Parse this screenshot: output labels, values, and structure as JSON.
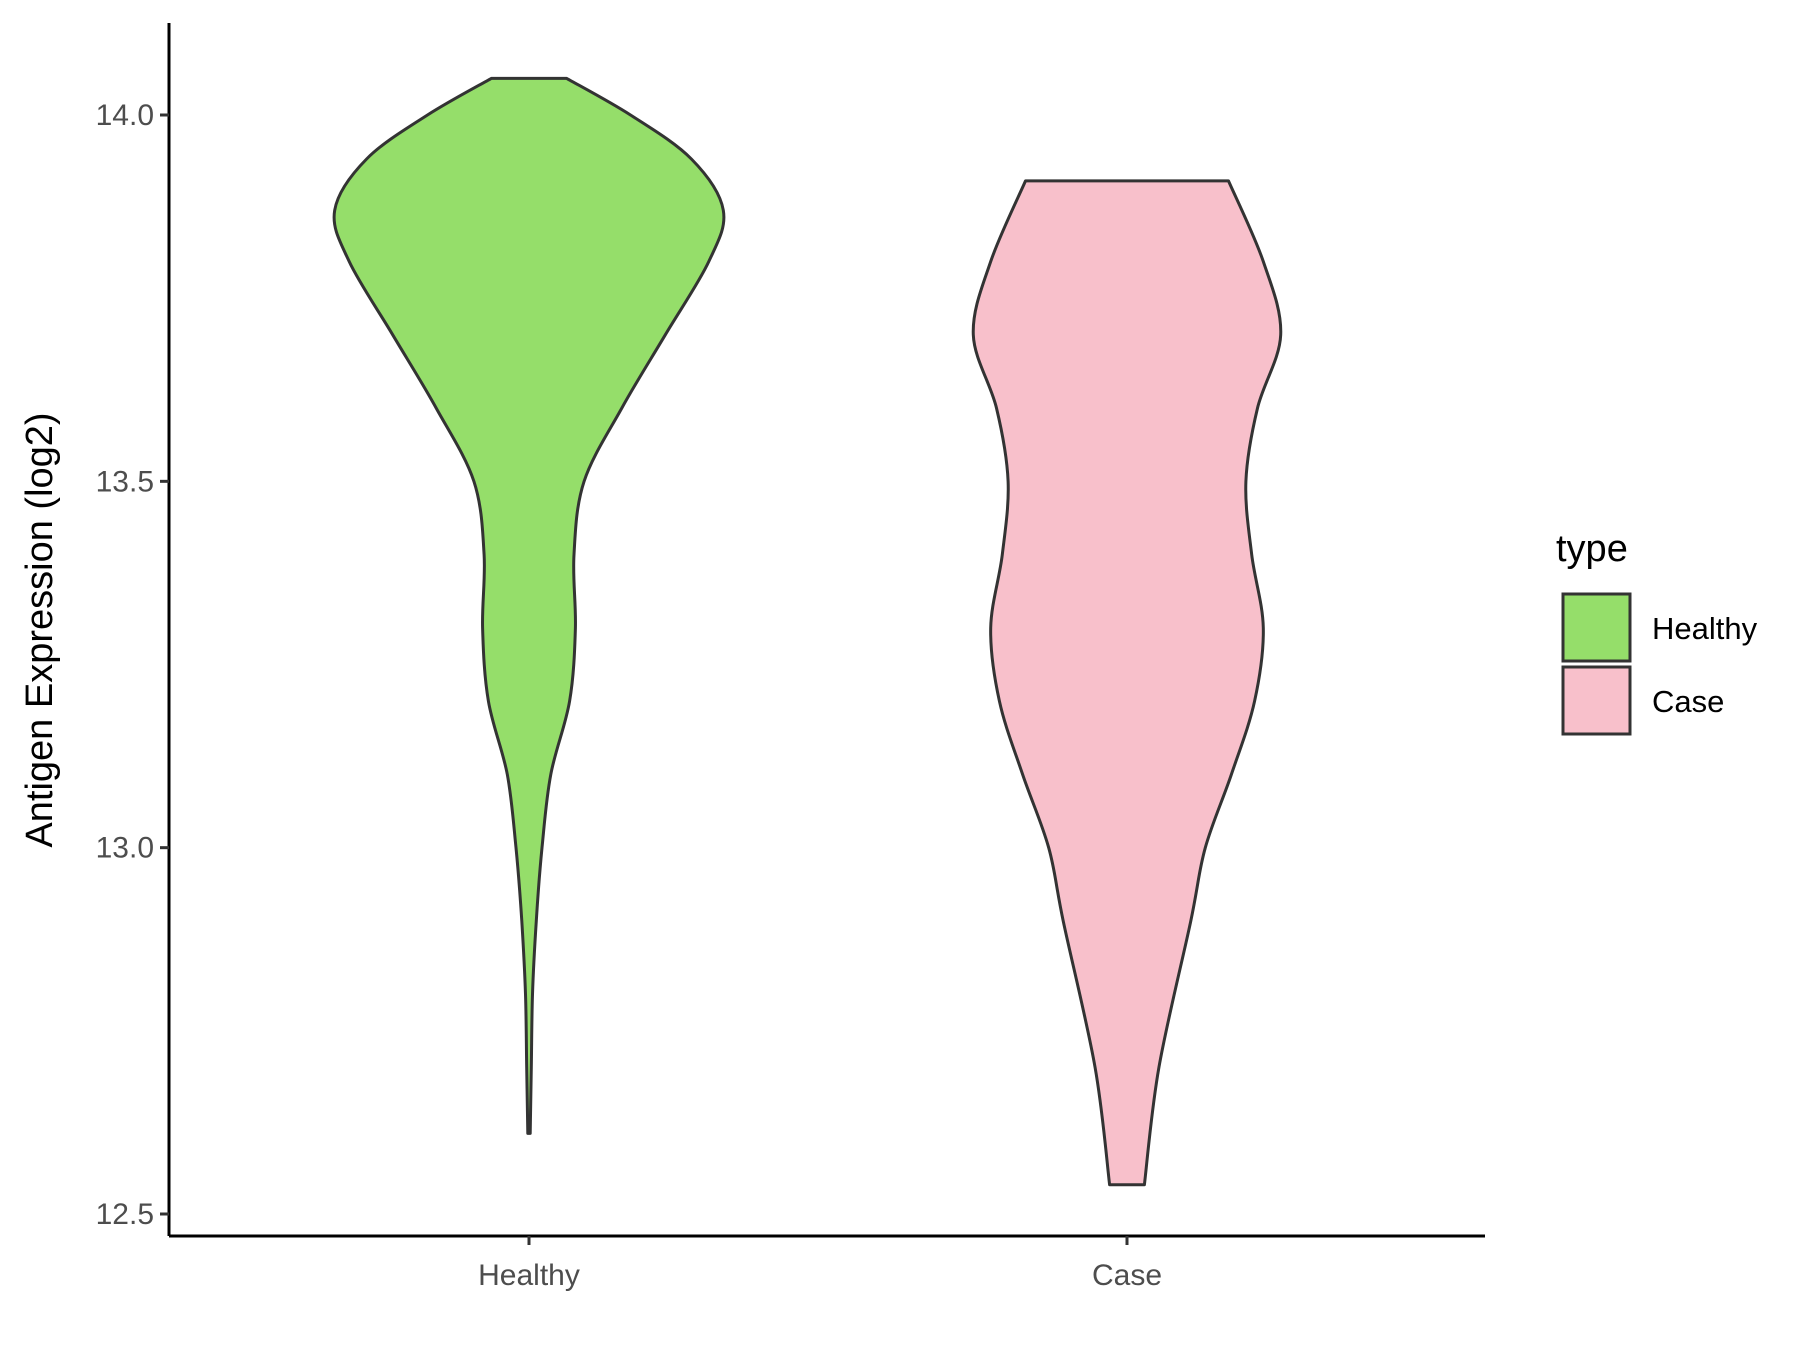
{
  "chart_data": {
    "type": "violin",
    "title": "",
    "xlabel": "",
    "ylabel": "Antigen Expression (log2)",
    "ylim": [
      12.48,
      14.13
    ],
    "yticks": [
      "12.5",
      "13.0",
      "13.5",
      "14.0"
    ],
    "categories": [
      "Healthy",
      "Case"
    ],
    "grid": false,
    "legend": {
      "title": "type",
      "position": "right",
      "entries": [
        "Healthy",
        "Case"
      ]
    },
    "series": [
      {
        "category": "Healthy",
        "color": "#95de6a",
        "min": 12.61,
        "max": 14.05,
        "profile": [
          [
            12.61,
            0.004
          ],
          [
            12.7,
            0.008
          ],
          [
            12.8,
            0.012
          ],
          [
            12.9,
            0.025
          ],
          [
            13.0,
            0.045
          ],
          [
            13.1,
            0.075
          ],
          [
            13.2,
            0.14
          ],
          [
            13.3,
            0.16
          ],
          [
            13.4,
            0.155
          ],
          [
            13.5,
            0.19
          ],
          [
            13.6,
            0.32
          ],
          [
            13.7,
            0.47
          ],
          [
            13.8,
            0.62
          ],
          [
            13.87,
            0.67
          ],
          [
            13.94,
            0.56
          ],
          [
            14.0,
            0.35
          ],
          [
            14.05,
            0.13
          ]
        ]
      },
      {
        "category": "Case",
        "color": "#f8c0cb",
        "min": 12.54,
        "max": 13.91,
        "profile": [
          [
            12.54,
            0.06
          ],
          [
            12.7,
            0.11
          ],
          [
            12.9,
            0.22
          ],
          [
            13.0,
            0.27
          ],
          [
            13.1,
            0.36
          ],
          [
            13.2,
            0.44
          ],
          [
            13.3,
            0.47
          ],
          [
            13.4,
            0.43
          ],
          [
            13.5,
            0.41
          ],
          [
            13.6,
            0.45
          ],
          [
            13.7,
            0.53
          ],
          [
            13.8,
            0.47
          ],
          [
            13.91,
            0.35
          ]
        ]
      }
    ]
  }
}
